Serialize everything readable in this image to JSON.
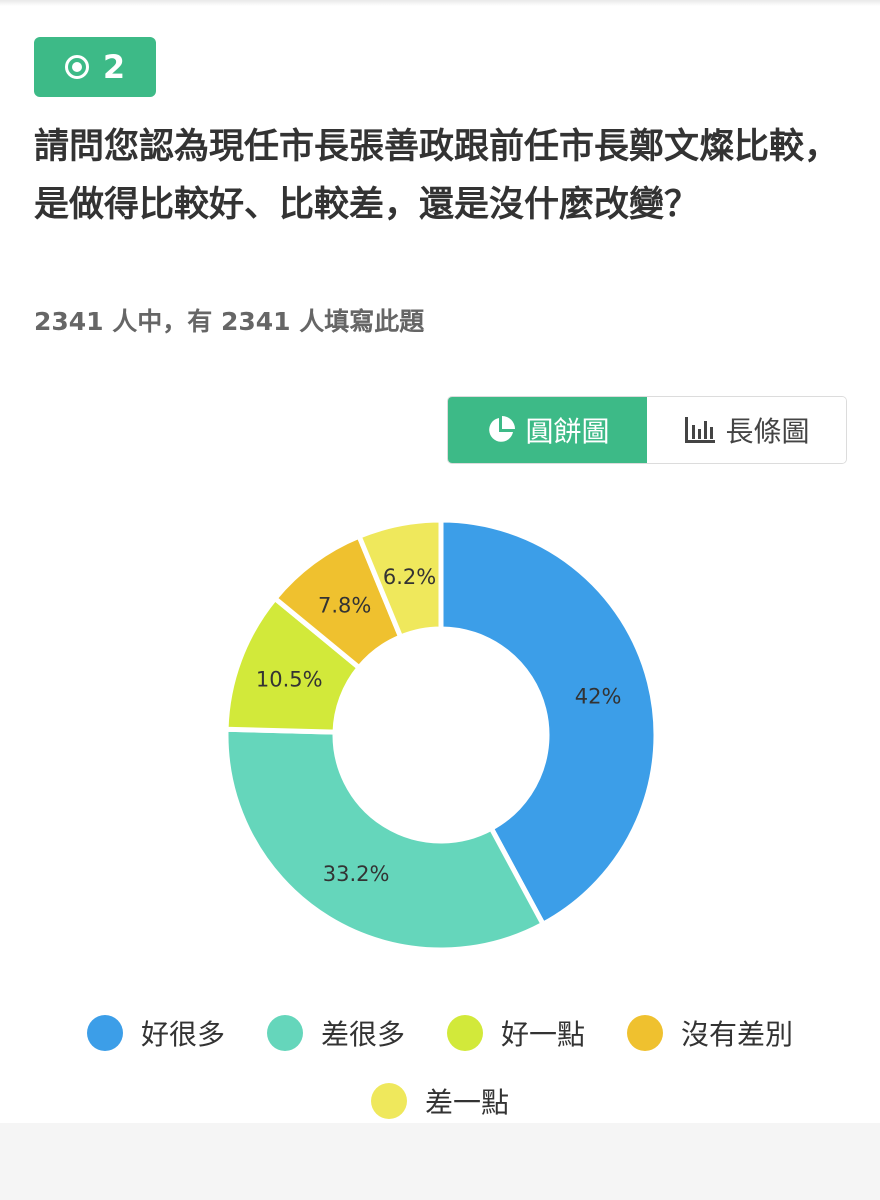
{
  "question_badge": {
    "number": "2",
    "icon": "radio-icon"
  },
  "question_text": "請問您認為現任市長張善政跟前任市長鄭文燦比較，是做得比較好、比較差，還是沒什麼改變？",
  "respondents_text": "2341 人中，有 2341 人填寫此題",
  "toggle": {
    "pie_label": "圓餅圖",
    "bar_label": "長條圖",
    "pie_icon": "pie-chart-icon",
    "bar_icon": "bar-chart-icon",
    "active": "pie"
  },
  "chart_data": {
    "type": "pie",
    "donut": true,
    "categories": [
      "好很多",
      "差很多",
      "好一點",
      "沒有差別",
      "差一點"
    ],
    "values": [
      42,
      33.2,
      10.5,
      7.8,
      6.2
    ],
    "labels": [
      "42%",
      "33.2%",
      "10.5%",
      "7.8%",
      "6.2%"
    ],
    "colors": [
      "#3c9ee8",
      "#65d6bb",
      "#d2e93a",
      "#efc12f",
      "#efe85c"
    ],
    "legend_position": "bottom"
  }
}
